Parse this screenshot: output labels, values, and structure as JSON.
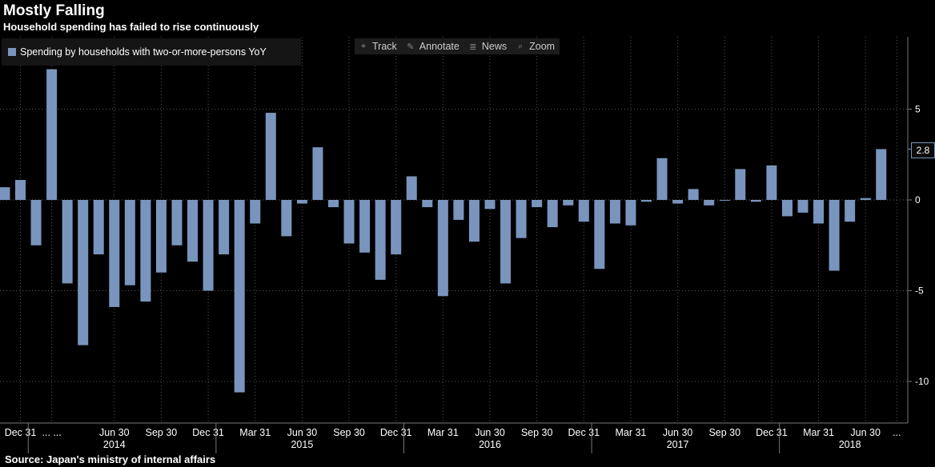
{
  "title": "Mostly Falling",
  "subtitle": "Household spending has failed to rise continuously",
  "legend": {
    "label": "Spending by households with two-or-more-persons YoY"
  },
  "toolbar": {
    "track": "Track",
    "annotate": "Annotate",
    "news": "News",
    "zoom": "Zoom"
  },
  "last_value_label": "2.8",
  "source": "Source: Japan's ministry of internal affairs",
  "colors": {
    "bar": "#7a95bd",
    "background": "#000000",
    "grid": "#555555"
  },
  "icons": {
    "track": "crosshair-icon",
    "annotate": "pencil-icon",
    "news": "news-icon",
    "zoom": "magnifier-icon"
  },
  "chart_data": {
    "type": "bar",
    "x": [
      "2013-11",
      "2013-12",
      "2014-01",
      "2014-02",
      "2014-03",
      "2014-04",
      "2014-05",
      "2014-06",
      "2014-07",
      "2014-08",
      "2014-09",
      "2014-10",
      "2014-11",
      "2014-12",
      "2015-01",
      "2015-02",
      "2015-03",
      "2015-04",
      "2015-05",
      "2015-06",
      "2015-07",
      "2015-08",
      "2015-09",
      "2015-10",
      "2015-11",
      "2015-12",
      "2016-01",
      "2016-02",
      "2016-03",
      "2016-04",
      "2016-05",
      "2016-06",
      "2016-07",
      "2016-08",
      "2016-09",
      "2016-10",
      "2016-11",
      "2016-12",
      "2017-01",
      "2017-02",
      "2017-03",
      "2017-04",
      "2017-05",
      "2017-06",
      "2017-07",
      "2017-08",
      "2017-09",
      "2017-10",
      "2017-11",
      "2017-12",
      "2018-01",
      "2018-02",
      "2018-03",
      "2018-04",
      "2018-05",
      "2018-06",
      "2018-07"
    ],
    "values": [
      0.7,
      1.1,
      -2.5,
      7.2,
      -4.6,
      -8.0,
      -3.0,
      -5.9,
      -4.7,
      -5.6,
      -4.0,
      -2.5,
      -3.4,
      -5.0,
      -3.0,
      -10.6,
      -1.3,
      4.8,
      -2.0,
      -0.2,
      2.9,
      -0.4,
      -2.4,
      -2.9,
      -4.4,
      -3.0,
      1.3,
      -0.4,
      -5.3,
      -1.1,
      -2.3,
      -0.5,
      -4.6,
      -2.1,
      -0.4,
      -1.5,
      -0.3,
      -1.2,
      -3.8,
      -1.3,
      -1.4,
      -0.1,
      2.3,
      -0.2,
      0.6,
      -0.3,
      0.0,
      1.7,
      -0.1,
      1.9,
      -0.9,
      -0.7,
      -1.3,
      -3.9,
      -1.2,
      0.1,
      2.8
    ],
    "yticks": [
      5,
      0,
      -5,
      -10
    ],
    "ylim": [
      -12.5,
      8.7
    ],
    "grid": true,
    "x_tick_labels": [
      {
        "label": "Dec 31",
        "index": 1
      },
      {
        "label": "... ...",
        "index": 3
      },
      {
        "label": "Jun 30",
        "index": 7
      },
      {
        "label": "Sep 30",
        "index": 10
      },
      {
        "label": "Dec 31",
        "index": 13
      },
      {
        "label": "Mar 31",
        "index": 16
      },
      {
        "label": "Jun 30",
        "index": 19
      },
      {
        "label": "Sep 30",
        "index": 22
      },
      {
        "label": "Dec 31",
        "index": 25
      },
      {
        "label": "Mar 31",
        "index": 28
      },
      {
        "label": "Jun 30",
        "index": 31
      },
      {
        "label": "Sep 30",
        "index": 34
      },
      {
        "label": "Dec 31",
        "index": 37
      },
      {
        "label": "Mar 31",
        "index": 40
      },
      {
        "label": "Jun 30",
        "index": 43
      },
      {
        "label": "Sep 30",
        "index": 46
      },
      {
        "label": "Dec 31",
        "index": 49
      },
      {
        "label": "Mar 31",
        "index": 52
      },
      {
        "label": "Jun 30",
        "index": 55
      },
      {
        "label": "...",
        "index": 57
      }
    ],
    "year_labels": [
      {
        "label": "2014",
        "index": 7
      },
      {
        "label": "2015",
        "index": 19
      },
      {
        "label": "2016",
        "index": 31
      },
      {
        "label": "2017",
        "index": 43
      },
      {
        "label": "2018",
        "index": 54
      }
    ],
    "year_dividers": [
      2,
      14,
      26,
      38,
      50
    ],
    "legend_position": "top-left"
  }
}
